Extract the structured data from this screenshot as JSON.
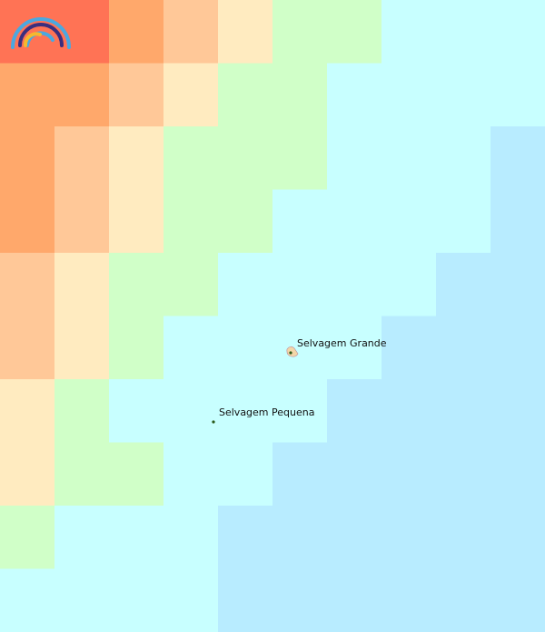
{
  "labels": [
    "Selvagem Grande",
    "Selvagem Pequena"
  ]
}
